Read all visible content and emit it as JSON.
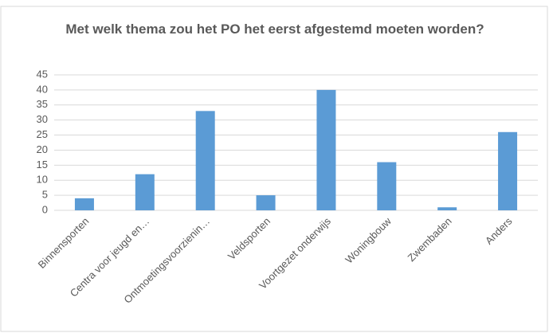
{
  "chart_data": {
    "type": "bar",
    "title": "Met welk thema zou het PO het eerst afgestemd moeten worden?",
    "categories": [
      "Binnensporten",
      "Centra voor jeugd en…",
      "Ontmoetingsvoorzienin…",
      "Veldsporten",
      "Voortgezet onderwijs",
      "Woningbouw",
      "Zwembaden",
      "Anders"
    ],
    "values": [
      4,
      12,
      33,
      5,
      40,
      16,
      1,
      26
    ],
    "color": "#5b9bd5",
    "ylim": [
      0,
      45
    ],
    "yticks": [
      0,
      5,
      10,
      15,
      20,
      25,
      30,
      35,
      40,
      45
    ],
    "grid": true
  }
}
